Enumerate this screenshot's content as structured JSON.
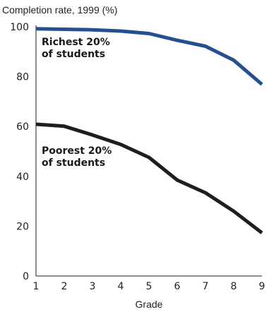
{
  "chart_data": {
    "type": "line",
    "title": "Completion rate, 1999 (%)",
    "xlabel": "Grade",
    "ylabel": "",
    "x": [
      1,
      2,
      3,
      4,
      5,
      6,
      7,
      8,
      9
    ],
    "xlim": [
      1,
      9
    ],
    "ylim": [
      0,
      100
    ],
    "xticks": [
      "1",
      "2",
      "3",
      "4",
      "5",
      "6",
      "7",
      "8",
      "9"
    ],
    "yticks": [
      "0",
      "20",
      "40",
      "60",
      "80",
      "100"
    ],
    "grid": false,
    "legend": "none",
    "series": [
      {
        "name": "Richest 20% of students",
        "label_lines": [
          "Richest 20%",
          "of students"
        ],
        "color": "#23508f",
        "values": [
          99.2,
          99.0,
          98.8,
          98.3,
          97.3,
          94.6,
          92.2,
          86.6,
          76.9
        ]
      },
      {
        "name": "Poorest 20% of students",
        "label_lines": [
          "Poorest 20%",
          "of students"
        ],
        "color": "#1e1e1e",
        "values": [
          60.9,
          60.1,
          56.6,
          52.8,
          47.6,
          38.5,
          33.4,
          26.0,
          17.3
        ]
      }
    ]
  }
}
